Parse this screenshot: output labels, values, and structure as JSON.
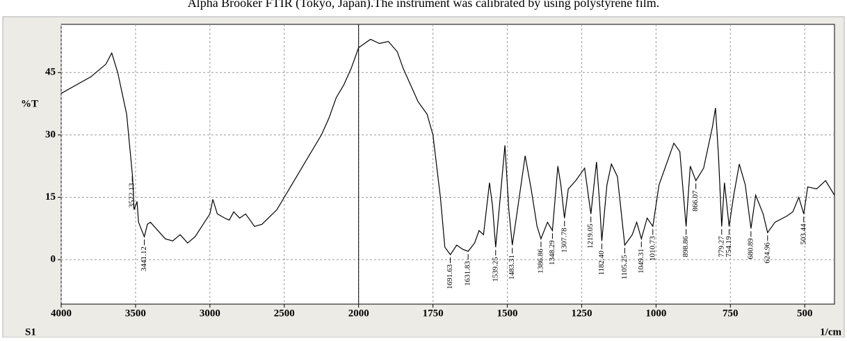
{
  "caption": "Alpha Brooker FTIR (Tokyo, Japan).The instrument was calibrated by using polystyrene film.",
  "chart_data": {
    "type": "line",
    "ylabel": "%T",
    "xlabel": "1/cm",
    "sample": "S1",
    "xlim": [
      4000,
      400
    ],
    "xticks": [
      4000,
      3500,
      3000,
      2500,
      2000,
      1750,
      1500,
      1250,
      1000,
      750,
      500
    ],
    "ylim": [
      -10.7,
      56.6
    ],
    "yticks": [
      0,
      15,
      30,
      45
    ],
    "grid": true,
    "cursor": 2000,
    "series": [
      {
        "name": "S1",
        "color": "#000000",
        "x": [
          4000,
          3800,
          3700,
          3660,
          3620,
          3560,
          3520,
          3510,
          3490,
          3480,
          3441,
          3420,
          3400,
          3300,
          3250,
          3200,
          3150,
          3100,
          3000,
          2980,
          2950,
          2900,
          2870,
          2840,
          2800,
          2760,
          2700,
          2650,
          2550,
          2450,
          2350,
          2250,
          2200,
          2150,
          2100,
          2050,
          2000,
          1960,
          1930,
          1900,
          1870,
          1850,
          1800,
          1770,
          1750,
          1725,
          1710,
          1691.63,
          1670,
          1650,
          1631.83,
          1610,
          1595,
          1580,
          1560,
          1550,
          1539.25,
          1520,
          1508,
          1495,
          1483.31,
          1470,
          1440,
          1420,
          1400,
          1386.86,
          1365,
          1348.29,
          1330,
          1320,
          1307.78,
          1295,
          1270,
          1240,
          1219.05,
          1200,
          1190,
          1182.4,
          1165,
          1150,
          1130,
          1105.25,
          1080,
          1065,
          1049.31,
          1030,
          1010.73,
          990,
          960,
          940,
          920,
          898.86,
          885,
          866.07,
          840,
          810,
          800,
          790,
          779.27,
          770,
          754.19,
          740,
          720,
          700,
          680.89,
          665,
          640,
          624.96,
          600,
          560,
          540,
          520,
          503.44,
          490,
          460,
          430,
          400
        ],
        "values": [
          40,
          44,
          47,
          49.7,
          45,
          35,
          20,
          12,
          14,
          9,
          5.5,
          8.5,
          9,
          5,
          4.5,
          6,
          4,
          5.5,
          11,
          14.5,
          11,
          10,
          9.5,
          11.5,
          10,
          11,
          8,
          8.5,
          12,
          18,
          24,
          30,
          34,
          39,
          42,
          46,
          51,
          53,
          52,
          52.5,
          50,
          46,
          38,
          35,
          30,
          15,
          3,
          1.2,
          3.5,
          2.5,
          2,
          4,
          7,
          6,
          18.5,
          13,
          3,
          18,
          27.5,
          12,
          3.5,
          10,
          25,
          17,
          8,
          5,
          9,
          7,
          22.5,
          18,
          10,
          17,
          19,
          22,
          11,
          23.5,
          14,
          4.5,
          18,
          23,
          20,
          3.5,
          6,
          9,
          5,
          10,
          8,
          18,
          24,
          28,
          26,
          8,
          22.5,
          19,
          22,
          32,
          36.5,
          25,
          8,
          18.5,
          8,
          15,
          23,
          18,
          7.5,
          15.5,
          11,
          6.5,
          9,
          10.5,
          11.5,
          15,
          11,
          17.5,
          17,
          19,
          15.5
        ]
      }
    ],
    "peaks": [
      3522.13,
      3441.12,
      1691.63,
      1631.83,
      1539.25,
      1483.31,
      1386.86,
      1348.29,
      1307.78,
      1219.05,
      1182.4,
      1105.25,
      1049.31,
      1010.73,
      898.86,
      866.07,
      779.27,
      754.19,
      680.89,
      624.96,
      503.44
    ],
    "peak_labels": [
      "3522.13",
      "3441.12",
      "1691.63",
      "1631.83",
      "1539.25",
      "1483.31",
      "1386.86",
      "1348.29",
      "1307.78",
      "1219.05",
      "1182.40",
      "1105.25",
      "1049.31",
      "1010.73",
      "898.86",
      "866.07",
      "779.27",
      "754.19",
      "680.89",
      "624.96",
      "503.44"
    ]
  }
}
